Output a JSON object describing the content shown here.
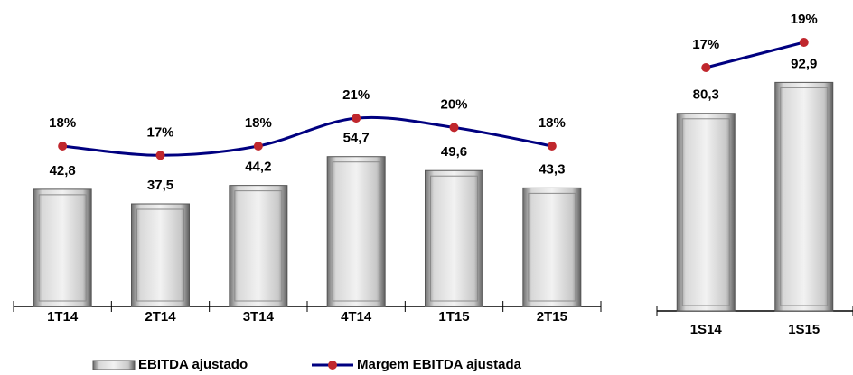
{
  "chart_data": [
    {
      "type": "bar-line",
      "categories": [
        "1T14",
        "2T14",
        "3T14",
        "4T14",
        "1T15",
        "2T15"
      ],
      "series": [
        {
          "name": "EBITDA ajustado",
          "type": "bar",
          "color": "#b8b8b8",
          "values": [
            42.8,
            37.5,
            44.2,
            54.7,
            49.6,
            43.3
          ],
          "value_labels": [
            "42,8",
            "37,5",
            "44,2",
            "54,7",
            "49,6",
            "43,3"
          ]
        },
        {
          "name": "Margem EBITDA ajustada",
          "type": "line",
          "color": "#000080",
          "marker_color": "#c0272d",
          "values": [
            18,
            17,
            18,
            21,
            20,
            18
          ],
          "value_labels": [
            "18%",
            "17%",
            "18%",
            "21%",
            "20%",
            "18%"
          ]
        }
      ]
    },
    {
      "type": "bar-line",
      "categories": [
        "1S14",
        "1S15"
      ],
      "series": [
        {
          "type": "bar",
          "color": "#b8b8b8",
          "values": [
            80.3,
            92.9
          ],
          "value_labels": [
            "80,3",
            "92,9"
          ]
        },
        {
          "type": "line",
          "color": "#000080",
          "marker_color": "#c0272d",
          "values": [
            17,
            19
          ],
          "value_labels": [
            "17%",
            "19%"
          ]
        }
      ]
    }
  ]
}
